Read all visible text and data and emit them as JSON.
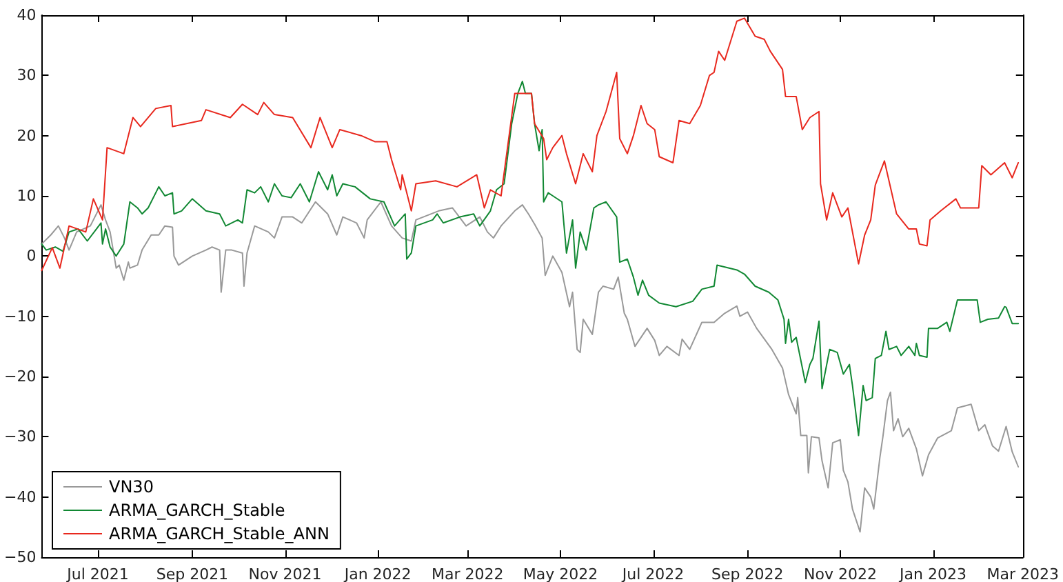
{
  "chart_data": {
    "type": "line",
    "xlim": [
      "2021-05-25",
      "2023-03-01"
    ],
    "xticks": [
      {
        "value": "2021-07-01",
        "label": "Jul 2021"
      },
      {
        "value": "2021-09-01",
        "label": "Sep 2021"
      },
      {
        "value": "2021-11-01",
        "label": "Nov 2021"
      },
      {
        "value": "2022-01-01",
        "label": "Jan 2022"
      },
      {
        "value": "2022-03-01",
        "label": "Mar 2022"
      },
      {
        "value": "2022-05-01",
        "label": "May 2022"
      },
      {
        "value": "2022-07-01",
        "label": "Jul 2022"
      },
      {
        "value": "2022-09-01",
        "label": "Sep 2022"
      },
      {
        "value": "2022-11-01",
        "label": "Nov 2022"
      },
      {
        "value": "2023-01-01",
        "label": "Jan 2023"
      },
      {
        "value": "2023-03-01",
        "label": "Mar 2023"
      }
    ],
    "ylim": [
      -50,
      40
    ],
    "yticks": [
      -50,
      -40,
      -30,
      -20,
      -10,
      0,
      10,
      20,
      30,
      40
    ],
    "grid": false,
    "legend": "bottom left",
    "series": [
      {
        "name": "VN30",
        "color": "#999999",
        "x": [
          "2021-05-25",
          "2021-05-31",
          "2021-06-05",
          "2021-06-09",
          "2021-06-12",
          "2021-06-17",
          "2021-06-26",
          "2021-07-03",
          "2021-07-06",
          "2021-07-09",
          "2021-07-13",
          "2021-07-15",
          "2021-07-18",
          "2021-07-21",
          "2021-07-22",
          "2021-07-27",
          "2021-07-30",
          "2021-08-05",
          "2021-08-10",
          "2021-08-14",
          "2021-08-19",
          "2021-08-20",
          "2021-08-23",
          "2021-09-01",
          "2021-09-10",
          "2021-09-14",
          "2021-09-19",
          "2021-09-20",
          "2021-09-23",
          "2021-09-27",
          "2021-10-04",
          "2021-10-05",
          "2021-10-07",
          "2021-10-12",
          "2021-10-21",
          "2021-10-25",
          "2021-10-30",
          "2021-11-06",
          "2021-11-12",
          "2021-11-21",
          "2021-11-29",
          "2021-12-05",
          "2021-12-09",
          "2021-12-18",
          "2021-12-23",
          "2021-12-25",
          "2022-01-03",
          "2022-01-10",
          "2022-01-17",
          "2022-01-23",
          "2022-01-26",
          "2022-02-10",
          "2022-02-19",
          "2022-02-28",
          "2022-03-09",
          "2022-03-14",
          "2022-03-18",
          "2022-03-23",
          "2022-04-01",
          "2022-04-06",
          "2022-04-10",
          "2022-04-14",
          "2022-04-19",
          "2022-04-21",
          "2022-04-26",
          "2022-05-02",
          "2022-05-07",
          "2022-05-09",
          "2022-05-12",
          "2022-05-14",
          "2022-05-16",
          "2022-05-22",
          "2022-05-26",
          "2022-05-29",
          "2022-06-05",
          "2022-06-08",
          "2022-06-12",
          "2022-06-14",
          "2022-06-19",
          "2022-06-27",
          "2022-07-02",
          "2022-07-05",
          "2022-07-10",
          "2022-07-18",
          "2022-07-20",
          "2022-07-25",
          "2022-08-02",
          "2022-08-10",
          "2022-08-17",
          "2022-08-25",
          "2022-08-27",
          "2022-09-01",
          "2022-09-07",
          "2022-09-17",
          "2022-09-24",
          "2022-09-28",
          "2022-10-03",
          "2022-10-04",
          "2022-10-06",
          "2022-10-10",
          "2022-10-11",
          "2022-10-13",
          "2022-10-18",
          "2022-10-20",
          "2022-10-24",
          "2022-10-27",
          "2022-11-01",
          "2022-11-03",
          "2022-11-06",
          "2022-11-09",
          "2022-11-14",
          "2022-11-17",
          "2022-11-21",
          "2022-11-23",
          "2022-11-27",
          "2022-11-29",
          "2022-12-02",
          "2022-12-04",
          "2022-12-06",
          "2022-12-09",
          "2022-12-12",
          "2022-12-16",
          "2022-12-21",
          "2022-12-25",
          "2022-12-29",
          "2023-01-04",
          "2023-01-13",
          "2023-01-17",
          "2023-01-26",
          "2023-01-31",
          "2023-02-04",
          "2023-02-09",
          "2023-02-13",
          "2023-02-18",
          "2023-02-22",
          "2023-02-26"
        ],
        "values": [
          2,
          3.5,
          5,
          3,
          1,
          4,
          5,
          8.5,
          6,
          4,
          -2,
          -1.5,
          -4,
          -1,
          -2,
          -1.5,
          1,
          3.5,
          3.5,
          5,
          4.8,
          0,
          -1.5,
          0,
          1,
          1.5,
          1,
          -6,
          1,
          1,
          0.5,
          -5,
          0.5,
          5,
          4,
          3,
          6.5,
          6.5,
          5.5,
          9,
          7,
          3.5,
          6.5,
          5.5,
          3,
          6,
          9,
          5,
          3,
          2.5,
          6,
          7.5,
          8,
          5,
          6.5,
          4,
          3,
          5,
          7.5,
          8.5,
          7,
          5.3,
          3,
          -3.2,
          0,
          -2.7,
          -8.4,
          -6,
          -15.5,
          -16,
          -10.5,
          -13,
          -6,
          -5,
          -5.5,
          -3.5,
          -9.5,
          -10.5,
          -15,
          -12,
          -14,
          -16.5,
          -15,
          -16.5,
          -13.8,
          -15.5,
          -11,
          -11,
          -9.5,
          -8.3,
          -10,
          -9.3,
          -12,
          -15.5,
          -18.6,
          -23,
          -26.2,
          -23.5,
          -29.8,
          -29.8,
          -36,
          -30,
          -30.2,
          -34,
          -38.5,
          -31,
          -30.5,
          -35.6,
          -37.5,
          -42,
          -45.8,
          -38.5,
          -40,
          -42,
          -33.5,
          -30,
          -24,
          -22.6,
          -29,
          -27,
          -30,
          -28.6,
          -32,
          -36.5,
          -33,
          -30.2,
          -29,
          -25.2,
          -24.6,
          -29,
          -28,
          -31.5,
          -32.4,
          -28.3,
          -32.5,
          -35
        ]
      },
      {
        "name": "ARMA_GARCH_Stable",
        "color": "#118833",
        "x": [
          "2021-05-25",
          "2021-05-28",
          "2021-06-03",
          "2021-06-08",
          "2021-06-12",
          "2021-06-18",
          "2021-06-24",
          "2021-06-30",
          "2021-07-03",
          "2021-07-04",
          "2021-07-06",
          "2021-07-09",
          "2021-07-13",
          "2021-07-18",
          "2021-07-22",
          "2021-07-27",
          "2021-07-30",
          "2021-08-03",
          "2021-08-10",
          "2021-08-14",
          "2021-08-19",
          "2021-08-20",
          "2021-08-25",
          "2021-09-01",
          "2021-09-10",
          "2021-09-19",
          "2021-09-23",
          "2021-10-01",
          "2021-10-04",
          "2021-10-07",
          "2021-10-12",
          "2021-10-16",
          "2021-10-21",
          "2021-10-25",
          "2021-10-30",
          "2021-11-05",
          "2021-11-11",
          "2021-11-17",
          "2021-11-23",
          "2021-11-29",
          "2021-12-02",
          "2021-12-05",
          "2021-12-09",
          "2021-12-17",
          "2021-12-27",
          "2022-01-05",
          "2022-01-12",
          "2022-01-19",
          "2022-01-20",
          "2022-01-23",
          "2022-01-26",
          "2022-02-06",
          "2022-02-09",
          "2022-02-13",
          "2022-02-24",
          "2022-03-05",
          "2022-03-09",
          "2022-03-16",
          "2022-03-20",
          "2022-03-25",
          "2022-03-30",
          "2022-04-03",
          "2022-04-06",
          "2022-04-08",
          "2022-04-12",
          "2022-04-14",
          "2022-04-17",
          "2022-04-19",
          "2022-04-20",
          "2022-04-23",
          "2022-04-26",
          "2022-05-02",
          "2022-05-05",
          "2022-05-09",
          "2022-05-11",
          "2022-05-14",
          "2022-05-18",
          "2022-05-23",
          "2022-05-26",
          "2022-05-31",
          "2022-06-07",
          "2022-06-09",
          "2022-06-14",
          "2022-06-18",
          "2022-06-21",
          "2022-06-24",
          "2022-06-28",
          "2022-07-05",
          "2022-07-16",
          "2022-07-27",
          "2022-08-02",
          "2022-08-10",
          "2022-08-12",
          "2022-08-25",
          "2022-08-30",
          "2022-09-06",
          "2022-09-15",
          "2022-09-21",
          "2022-09-25",
          "2022-09-26",
          "2022-09-28",
          "2022-09-30",
          "2022-10-03",
          "2022-10-09",
          "2022-10-12",
          "2022-10-14",
          "2022-10-18",
          "2022-10-20",
          "2022-10-25",
          "2022-10-30",
          "2022-11-03",
          "2022-11-07",
          "2022-11-09",
          "2022-11-13",
          "2022-11-16",
          "2022-11-18",
          "2022-11-22",
          "2022-11-24",
          "2022-11-28",
          "2022-12-01",
          "2022-12-03",
          "2022-12-08",
          "2022-12-11",
          "2022-12-16",
          "2022-12-20",
          "2022-12-21",
          "2022-12-23",
          "2022-12-28",
          "2022-12-29",
          "2023-01-04",
          "2023-01-10",
          "2023-01-12",
          "2023-01-17",
          "2023-01-30",
          "2023-02-01",
          "2023-02-06",
          "2023-02-13",
          "2023-02-17",
          "2023-02-18",
          "2023-02-22",
          "2023-02-26"
        ],
        "values": [
          2,
          1,
          1.5,
          0.8,
          4,
          4.5,
          2.5,
          4.5,
          5.5,
          2,
          4.5,
          1.5,
          0,
          2,
          9,
          8,
          7,
          8,
          11.5,
          10,
          10.5,
          7,
          7.5,
          9.5,
          7.5,
          7,
          5,
          6,
          5.5,
          11,
          10.5,
          11.5,
          9,
          12,
          10,
          9.7,
          12,
          9,
          14,
          11,
          13.5,
          10,
          12,
          11.5,
          9.5,
          9,
          5,
          7,
          -0.5,
          0.5,
          5,
          6,
          7,
          5.5,
          6.5,
          7,
          5,
          7.5,
          11,
          12,
          22,
          27,
          29,
          27,
          27,
          22,
          17.5,
          21,
          9,
          10.5,
          10,
          9,
          0.5,
          6,
          -2,
          4,
          1,
          8,
          8.5,
          9,
          6.5,
          -1,
          -0.5,
          -3.5,
          -6.5,
          -4,
          -6.5,
          -7.8,
          -8.4,
          -7.5,
          -5.5,
          -5,
          -1.5,
          -2.3,
          -3,
          -5,
          -6,
          -7.3,
          -10.5,
          -14.5,
          -10.5,
          -14.3,
          -13.5,
          -21,
          -18,
          -17,
          -10.8,
          -22,
          -15.5,
          -16,
          -19.6,
          -18,
          -21.5,
          -29.8,
          -21.5,
          -24,
          -23.5,
          -17,
          -16.5,
          -12.5,
          -15.5,
          -15,
          -16.5,
          -15,
          -16.5,
          -14.5,
          -16.5,
          -16.8,
          -12,
          -12,
          -11,
          -12.5,
          -7.3,
          -7.3,
          -11,
          -10.5,
          -10.3,
          -8.4,
          -8.5,
          -11.2,
          -11.2
        ]
      },
      {
        "name": "ARMA_GARCH_Stable_ANN",
        "color": "#e8281e",
        "x": [
          "2021-05-25",
          "2021-06-01",
          "2021-06-06",
          "2021-06-12",
          "2021-06-23",
          "2021-06-28",
          "2021-07-04",
          "2021-07-07",
          "2021-07-18",
          "2021-07-24",
          "2021-07-29",
          "2021-08-08",
          "2021-08-18",
          "2021-08-19",
          "2021-09-07",
          "2021-09-10",
          "2021-09-26",
          "2021-10-04",
          "2021-10-14",
          "2021-10-18",
          "2021-10-25",
          "2021-11-06",
          "2021-11-18",
          "2021-11-24",
          "2021-12-02",
          "2021-12-07",
          "2021-12-21",
          "2021-12-30",
          "2022-01-07",
          "2022-01-10",
          "2022-01-16",
          "2022-01-17",
          "2022-01-23",
          "2022-01-26",
          "2022-02-08",
          "2022-02-22",
          "2022-03-07",
          "2022-03-12",
          "2022-03-16",
          "2022-03-23",
          "2022-04-01",
          "2022-04-12",
          "2022-04-14",
          "2022-04-20",
          "2022-04-22",
          "2022-04-26",
          "2022-05-02",
          "2022-05-05",
          "2022-05-11",
          "2022-05-16",
          "2022-05-22",
          "2022-05-25",
          "2022-05-31",
          "2022-06-07",
          "2022-06-09",
          "2022-06-14",
          "2022-06-18",
          "2022-06-23",
          "2022-06-27",
          "2022-07-02",
          "2022-07-05",
          "2022-07-14",
          "2022-07-18",
          "2022-07-25",
          "2022-08-01",
          "2022-08-07",
          "2022-08-10",
          "2022-08-13",
          "2022-08-17",
          "2022-08-25",
          "2022-08-30",
          "2022-09-06",
          "2022-09-12",
          "2022-09-16",
          "2022-09-24",
          "2022-09-26",
          "2022-10-03",
          "2022-10-07",
          "2022-10-12",
          "2022-10-18",
          "2022-10-19",
          "2022-10-23",
          "2022-10-27",
          "2022-11-02",
          "2022-11-06",
          "2022-11-13",
          "2022-11-17",
          "2022-11-21",
          "2022-11-24",
          "2022-11-30",
          "2022-12-08",
          "2022-12-16",
          "2022-12-21",
          "2022-12-23",
          "2022-12-28",
          "2022-12-30",
          "2023-01-06",
          "2023-01-16",
          "2023-01-19",
          "2023-01-31",
          "2023-02-02",
          "2023-02-08",
          "2023-02-17",
          "2023-02-22",
          "2023-02-26"
        ],
        "values": [
          -2.4,
          1.4,
          -2,
          5,
          4,
          9.5,
          6,
          18,
          17,
          23,
          21.5,
          24.5,
          25,
          21.5,
          22.5,
          24.3,
          23,
          25.2,
          23.5,
          25.5,
          23.5,
          23,
          18,
          23,
          18,
          21,
          20,
          19,
          19,
          16,
          11,
          13.5,
          7.5,
          12,
          12.5,
          11.5,
          13.5,
          8,
          11,
          10,
          27,
          27,
          22,
          19.5,
          16,
          18,
          20,
          17,
          12,
          17,
          14,
          20,
          24,
          30.5,
          19.5,
          17,
          20,
          25,
          22,
          21,
          16.5,
          15.5,
          22.5,
          22,
          25,
          30,
          30.5,
          34,
          32.5,
          39,
          39.5,
          36.5,
          36,
          34,
          31,
          26.5,
          26.5,
          21,
          23,
          24,
          12,
          6,
          10.5,
          6.5,
          8,
          -1.3,
          3.5,
          6,
          11.8,
          15.8,
          7,
          4.5,
          4.5,
          2,
          1.7,
          6,
          7.5,
          9.5,
          8,
          8,
          15,
          13.5,
          15.5,
          13,
          15.5
        ]
      }
    ]
  }
}
